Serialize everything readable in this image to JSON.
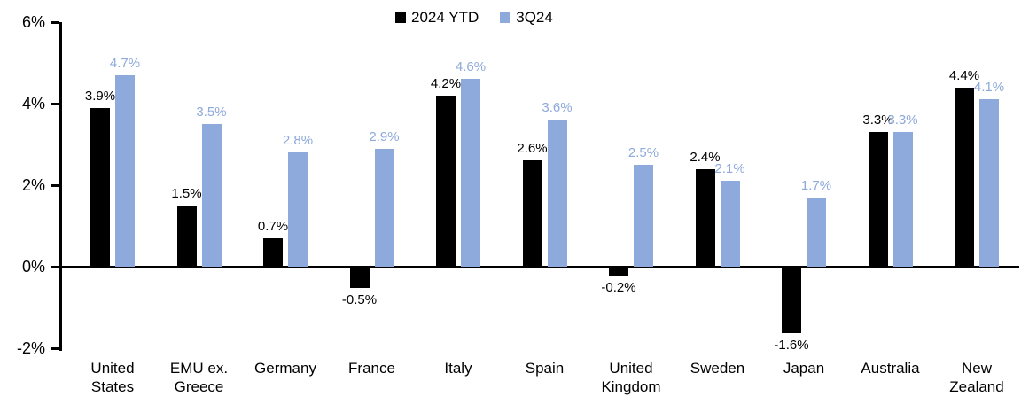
{
  "chart_data": {
    "type": "bar",
    "title": "",
    "xlabel": "",
    "ylabel": "",
    "grid": false,
    "legend_position": "top-center",
    "categories": [
      "United States",
      "EMU ex. Greece",
      "Germany",
      "France",
      "Italy",
      "Spain",
      "United Kingdom",
      "Sweden",
      "Japan",
      "Australia",
      "New Zealand"
    ],
    "series": [
      {
        "name": "2024 YTD",
        "color": "#000000",
        "values": [
          3.9,
          1.5,
          0.7,
          -0.5,
          4.2,
          2.6,
          -0.2,
          2.4,
          -1.6,
          3.3,
          4.4
        ],
        "labels": [
          "3.9%",
          "1.5%",
          "0.7%",
          "-0.5%",
          "4.2%",
          "2.6%",
          "-0.2%",
          "2.4%",
          "-1.6%",
          "3.3%",
          "4.4%"
        ]
      },
      {
        "name": "3Q24",
        "color": "#8EA9DB",
        "values": [
          4.7,
          3.5,
          2.8,
          2.9,
          4.6,
          3.6,
          2.5,
          2.1,
          1.7,
          3.3,
          4.1
        ],
        "labels": [
          "4.7%",
          "3.5%",
          "2.8%",
          "2.9%",
          "4.6%",
          "3.6%",
          "2.5%",
          "2.1%",
          "1.7%",
          "3.3%",
          "4.1%"
        ]
      }
    ],
    "y_axis": {
      "min": -2,
      "max": 6,
      "ticks": [
        {
          "value": 6,
          "label": "6%"
        },
        {
          "value": 4,
          "label": "4%"
        },
        {
          "value": 2,
          "label": "2%"
        },
        {
          "value": 0,
          "label": "0%"
        },
        {
          "value": -2,
          "label": "-2%"
        }
      ]
    }
  }
}
